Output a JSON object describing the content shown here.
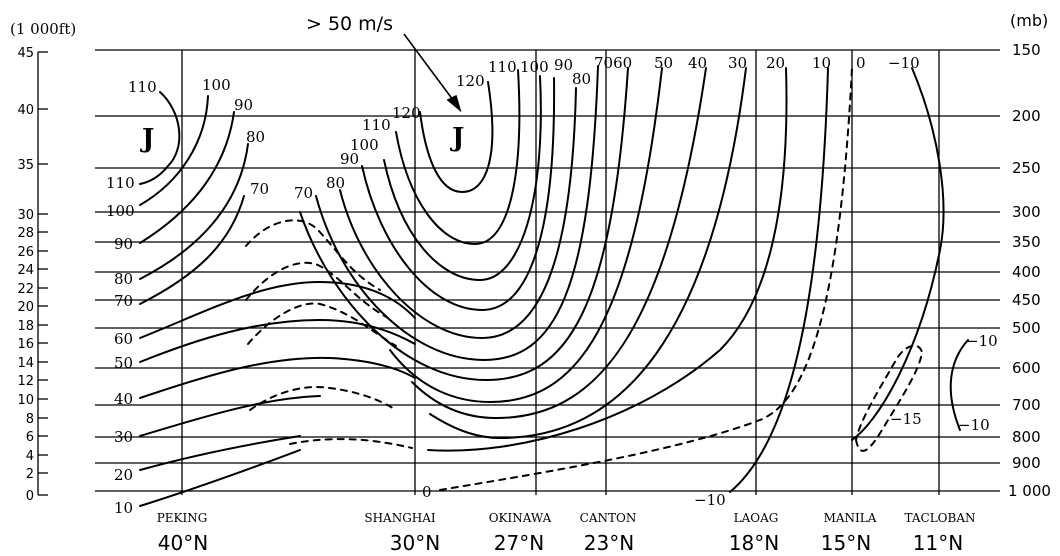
{
  "units": {
    "left": "(1 000ft)",
    "right": "(mb)"
  },
  "annotation": "> 50 m/s",
  "jet_label": "J",
  "left_ticks": [
    "45",
    "40",
    "35",
    "30",
    "28",
    "26",
    "24",
    "22",
    "20",
    "18",
    "16",
    "14",
    "12",
    "10",
    "8",
    "6",
    "4",
    "2",
    "0"
  ],
  "right_ticks": [
    "150",
    "200",
    "250",
    "300",
    "350",
    "400",
    "450",
    "500",
    "600",
    "700",
    "800",
    "900",
    "1 000"
  ],
  "stations": [
    "PEKING",
    "SHANGHAI",
    "OKINAWA",
    "CANTON",
    "LAOAG",
    "MANILA",
    "TACLOBAN"
  ],
  "latitudes": [
    "40°N",
    "30°N",
    "27°N",
    "23°N",
    "18°N",
    "15°N",
    "11°N"
  ],
  "isotach_labels": {
    "l110a": "110",
    "l100a": "100",
    "l90a": "90",
    "l80a": "80",
    "l70a": "70",
    "l110b": "110",
    "l100b": "100",
    "l90b": "90",
    "l80b": "80",
    "l70b": "70",
    "l60": "60",
    "l50": "50",
    "l40": "40",
    "l30": "30",
    "l20": "20",
    "l10": "10",
    "l70c": "70",
    "l80c": "80",
    "l90c": "90",
    "l100c": "100",
    "l110c": "110",
    "l120c": "120",
    "t120": "120",
    "t110": "110",
    "t100": "100",
    "t90": "90",
    "t80": "80",
    "t7060": "7060",
    "t50": "50",
    "t40": "40",
    "t30": "30",
    "t20": "20",
    "t10": "10",
    "t0": "0",
    "tm10": "−10",
    "b0": "0",
    "bm10": "−10",
    "m15": "−15",
    "rm10a": "−10",
    "rm10b": "−10"
  }
}
